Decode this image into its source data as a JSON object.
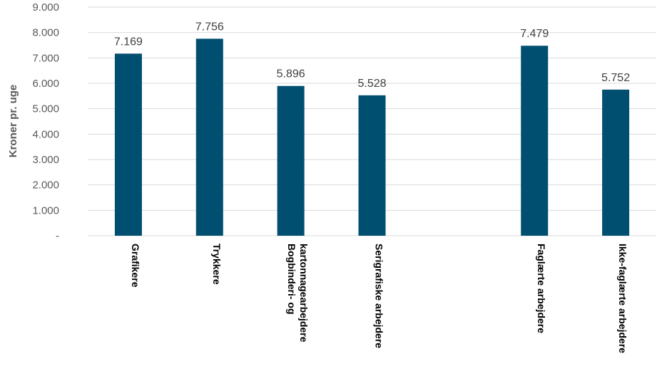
{
  "chart_data": {
    "type": "bar",
    "title": "",
    "xlabel": "",
    "ylabel": "Kroner pr. uge",
    "ylim": [
      0,
      9000
    ],
    "y_ticks": [
      0,
      1000,
      2000,
      3000,
      4000,
      5000,
      6000,
      7000,
      8000,
      9000
    ],
    "y_tick_labels": [
      "-",
      "1.000",
      "2.000",
      "3.000",
      "4.000",
      "5.000",
      "6.000",
      "7.000",
      "8.000",
      "9.000"
    ],
    "grid": true,
    "legend": "none",
    "bar_color": "#004F71",
    "categories": [
      [
        "Grafikere"
      ],
      [
        "Trykkere"
      ],
      [
        "Bogbinderi- og",
        "kartonnagearbejdere"
      ],
      [
        "Serigrafiske arbejdere"
      ],
      [],
      [
        "Faglærte arbejdere"
      ],
      [
        "Ikke-faglærte arbejdere"
      ]
    ],
    "values": [
      7169,
      7756,
      5896,
      5528,
      null,
      7479,
      5752
    ],
    "data_labels": [
      "7.169",
      "7.756",
      "5.896",
      "5.528",
      "",
      "7.479",
      "5.752"
    ]
  }
}
